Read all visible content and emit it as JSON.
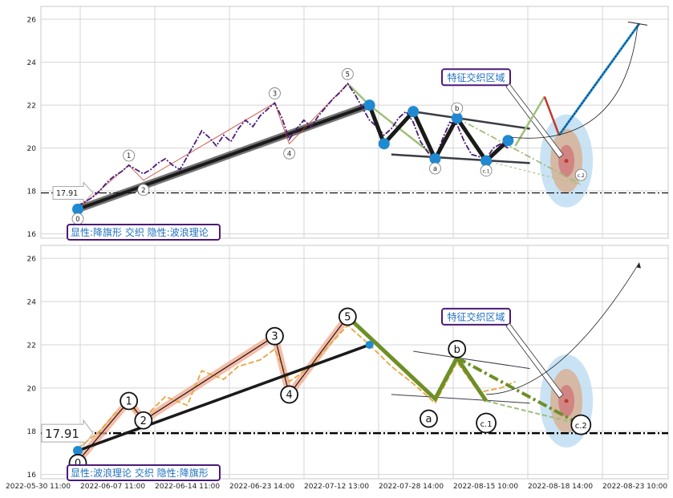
{
  "chart_data": [
    {
      "type": "line",
      "panel": "top",
      "ylim": [
        15.8,
        26.6
      ],
      "y_ticks": [
        16,
        18,
        20,
        22,
        24,
        26
      ],
      "grid": true,
      "price_series": [
        [
          0.0,
          17.3
        ],
        [
          1,
          17.5
        ],
        [
          2,
          17.7
        ],
        [
          3,
          18.0
        ],
        [
          4,
          18.4
        ],
        [
          5,
          18.7
        ],
        [
          6,
          18.9
        ],
        [
          7,
          19.2
        ],
        [
          8,
          19.0
        ],
        [
          9,
          18.8
        ],
        [
          10,
          19.0
        ],
        [
          11,
          19.3
        ],
        [
          12,
          19.5
        ],
        [
          13,
          19.2
        ],
        [
          14,
          19.0
        ],
        [
          15,
          19.6
        ],
        [
          16,
          20.2
        ],
        [
          17,
          20.8
        ],
        [
          18,
          20.5
        ],
        [
          19,
          20.1
        ],
        [
          20,
          20.6
        ],
        [
          21,
          20.3
        ],
        [
          22,
          20.9
        ],
        [
          23,
          21.3
        ],
        [
          24,
          21.0
        ],
        [
          25,
          21.5
        ],
        [
          26,
          21.8
        ],
        [
          27,
          22.1
        ],
        [
          28,
          21.4
        ],
        [
          29,
          20.4
        ],
        [
          30,
          20.9
        ],
        [
          31,
          21.3
        ],
        [
          32,
          21.0
        ],
        [
          33,
          21.5
        ],
        [
          34,
          21.9
        ],
        [
          35,
          22.3
        ],
        [
          36,
          22.6
        ],
        [
          37,
          23.0
        ],
        [
          38,
          22.5
        ],
        [
          39,
          21.9
        ],
        [
          40,
          21.3
        ],
        [
          41,
          21.0
        ],
        [
          42,
          20.6
        ],
        [
          43,
          20.9
        ],
        [
          44,
          21.4
        ],
        [
          45,
          21.7
        ],
        [
          46,
          21.2
        ],
        [
          47,
          20.3
        ],
        [
          48,
          19.8
        ],
        [
          49,
          19.5
        ],
        [
          50,
          20.4
        ],
        [
          51,
          21.2
        ],
        [
          52,
          21.1
        ],
        [
          53,
          20.3
        ],
        [
          54,
          19.7
        ],
        [
          55,
          19.6
        ],
        [
          56,
          19.5
        ],
        [
          57,
          20.0
        ],
        [
          58,
          20.2
        ],
        [
          59,
          20.0
        ]
      ],
      "wave_points": [
        {
          "label": "0",
          "x": 0,
          "y": 17.15
        },
        {
          "label": "1",
          "x": 7,
          "y": 19.2
        },
        {
          "label": "2",
          "x": 9,
          "y": 18.5
        },
        {
          "label": "3",
          "x": 27,
          "y": 22.1
        },
        {
          "label": "4",
          "x": 29,
          "y": 20.2
        },
        {
          "label": "5",
          "x": 37,
          "y": 23.0
        },
        {
          "label": "a",
          "x": 49,
          "y": 19.5
        },
        {
          "label": "b",
          "x": 52,
          "y": 21.4
        },
        {
          "label": "c.1",
          "x": 56,
          "y": 19.4
        },
        {
          "label": "c.2",
          "x": 69,
          "y": 18.3
        }
      ],
      "pennant_points": [
        {
          "x": 0,
          "y": 17.15
        },
        {
          "x": 40,
          "y": 22.0
        },
        {
          "x": 42,
          "y": 20.2
        },
        {
          "x": 46,
          "y": 21.7
        },
        {
          "x": 49,
          "y": 19.5
        },
        {
          "x": 52,
          "y": 21.4
        },
        {
          "x": 56,
          "y": 19.4
        },
        {
          "x": 59,
          "y": 20.35
        }
      ],
      "forecast_path": [
        {
          "x": 60,
          "y": 20.1
        },
        {
          "x": 64,
          "y": 22.4
        },
        {
          "x": 66,
          "y": 20.6
        },
        {
          "x": 77,
          "y": 25.8
        }
      ],
      "support_level": 17.91,
      "support_label": "17.91",
      "caption": "显性:降旗形 交织 隐性:波浪理论",
      "zone_label": "特征交织区域"
    },
    {
      "type": "line",
      "panel": "bottom",
      "ylim": [
        15.8,
        26.6
      ],
      "y_ticks": [
        16,
        18,
        20,
        22,
        24,
        26
      ],
      "grid": true,
      "wave_points": [
        {
          "label": "0",
          "x": 0,
          "y": 16.6
        },
        {
          "label": "1",
          "x": 7,
          "y": 19.4
        },
        {
          "label": "2",
          "x": 9,
          "y": 18.5
        },
        {
          "label": "3",
          "x": 27,
          "y": 22.4
        },
        {
          "label": "4",
          "x": 29,
          "y": 19.7
        },
        {
          "label": "5",
          "x": 37,
          "y": 23.3
        },
        {
          "label": "a",
          "x": 49,
          "y": 19.1
        },
        {
          "label": "b",
          "x": 52,
          "y": 21.8
        },
        {
          "label": "c.1",
          "x": 56,
          "y": 18.9
        },
        {
          "label": "c.2",
          "x": 69,
          "y": 18.3
        }
      ],
      "support_level": 17.91,
      "support_label": "17.91",
      "caption": "显性:波浪理论 交织 隐性:降旗形",
      "zone_label": "特征交织区域",
      "x_ticks": [
        "2022-05-30 11:00",
        "2022-06-07 11:00",
        "2022-06-14 11:00",
        "2022-06-23 14:00",
        "2022-07-12 13:00",
        "2022-07-28 14:00",
        "2022-08-15 10:00",
        "2022-08-18 14:00",
        "2022-08-23 10:00"
      ]
    }
  ],
  "colors": {
    "grid": "#d4d4d4",
    "black": "#1a1a1a",
    "purple": "#4b1a78",
    "blue": "#1f8ad2",
    "olive": "#6e8f26",
    "sage": "#9fbf7a",
    "dark_line": "#3a3c45",
    "orange": "#e8a640",
    "salmon": "#f3a58a",
    "red_line": "#c0392b",
    "zone_outer": "#bcdcf2",
    "zone_mid": "#d7b295",
    "zone_inner": "#d08080",
    "zone_core": "#c0392b",
    "label_blue": "#1f70c0",
    "label_border": "#4b1a78"
  }
}
